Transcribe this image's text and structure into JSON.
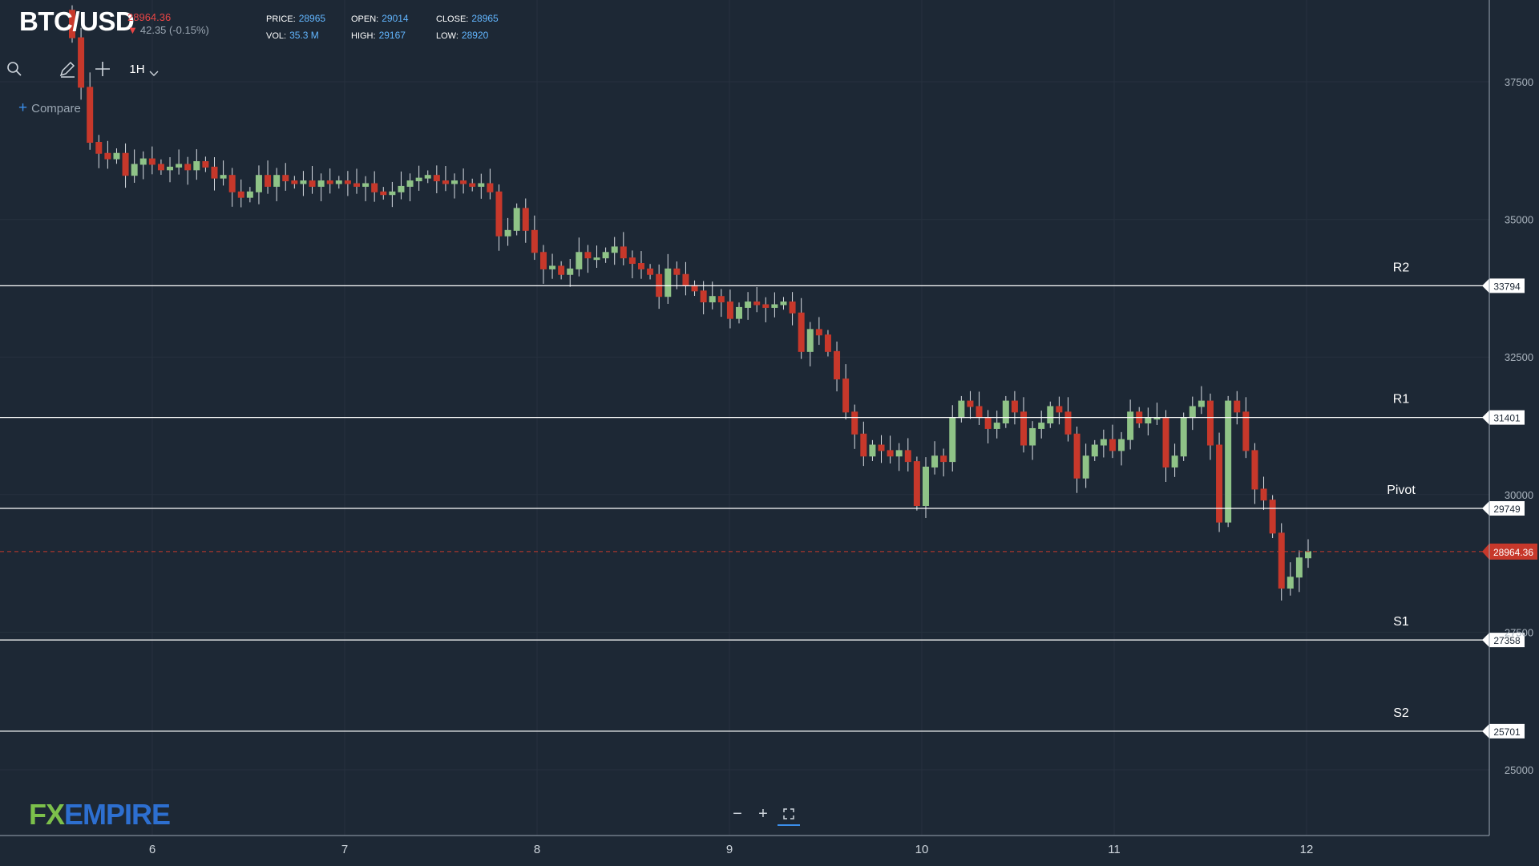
{
  "header": {
    "symbol": "BTC/USD",
    "last_price": "28964.36",
    "change": "42.35 (-0.15%)",
    "stats": [
      {
        "label": "PRICE:",
        "value": "28965"
      },
      {
        "label": "OPEN:",
        "value": "29014"
      },
      {
        "label": "CLOSE:",
        "value": "28965"
      },
      {
        "label": "VOL:",
        "value": "35.3 M"
      },
      {
        "label": "HIGH:",
        "value": "29167"
      },
      {
        "label": "LOW:",
        "value": "28920"
      }
    ]
  },
  "toolbar": {
    "timeframe": "1H",
    "compare_label": "Compare"
  },
  "icons": [
    "search-icon",
    "pencil-icon",
    "crosshair-icon",
    "chevron-down-icon",
    "plus-icon",
    "zoom-out-icon",
    "zoom-in-icon",
    "fullscreen-icon"
  ],
  "logo": {
    "part1": "FX",
    "part2": "EMPIRE"
  },
  "colors": {
    "background": "#1d2835",
    "bull": "#8fc387",
    "bear": "#c7382b",
    "level_line": "#ffffff",
    "last_price": "#c7382b",
    "grid": "#26313e"
  },
  "chart_data": {
    "type": "candlestick",
    "xlabel": "",
    "ylabel": "",
    "x_ticks": [
      "6",
      "7",
      "8",
      "9",
      "10",
      "11",
      "12"
    ],
    "y_ticks": [
      25000,
      27500,
      30000,
      32500,
      35000,
      37500
    ],
    "ylim": [
      24000,
      38500
    ],
    "grid": true,
    "levels": [
      {
        "name": "R2",
        "value": 33794
      },
      {
        "name": "R1",
        "value": 31401
      },
      {
        "name": "Pivot",
        "value": 29749
      },
      {
        "name": "S1",
        "value": 27358
      },
      {
        "name": "S2",
        "value": 25701
      }
    ],
    "last_price": 28964.36,
    "closes": [
      38300,
      37400,
      36400,
      36200,
      36100,
      36200,
      35800,
      36000,
      36100,
      36000,
      35900,
      35950,
      36000,
      35900,
      36050,
      35950,
      35750,
      35800,
      35500,
      35400,
      35500,
      35800,
      35600,
      35800,
      35700,
      35650,
      35700,
      35600,
      35700,
      35650,
      35700,
      35650,
      35600,
      35650,
      35500,
      35450,
      35500,
      35600,
      35700,
      35750,
      35800,
      35700,
      35650,
      35700,
      35650,
      35600,
      35650,
      35500,
      34700,
      34800,
      35200,
      34800,
      34400,
      34100,
      34150,
      34000,
      34100,
      34400,
      34300,
      34300,
      34400,
      34500,
      34300,
      34200,
      34100,
      34000,
      33600,
      34100,
      34000,
      33800,
      33700,
      33500,
      33600,
      33500,
      33200,
      33400,
      33500,
      33450,
      33400,
      33450,
      33500,
      33300,
      32600,
      33000,
      32900,
      32600,
      32100,
      31500,
      31100,
      30700,
      30900,
      30800,
      30700,
      30800,
      30600,
      29800,
      30500,
      30700,
      30600,
      31400,
      31700,
      31600,
      31400,
      31200,
      31300,
      31700,
      31500,
      30900,
      31200,
      31300,
      31600,
      31500,
      31100,
      30300,
      30700,
      30900,
      31000,
      30800,
      31000,
      31500,
      31300,
      31400,
      31400,
      30500,
      30700,
      31400,
      31600,
      31700,
      30900,
      29500,
      31700,
      31500,
      30800,
      30100,
      29900,
      29300,
      28300,
      28500,
      28850,
      28964
    ]
  }
}
